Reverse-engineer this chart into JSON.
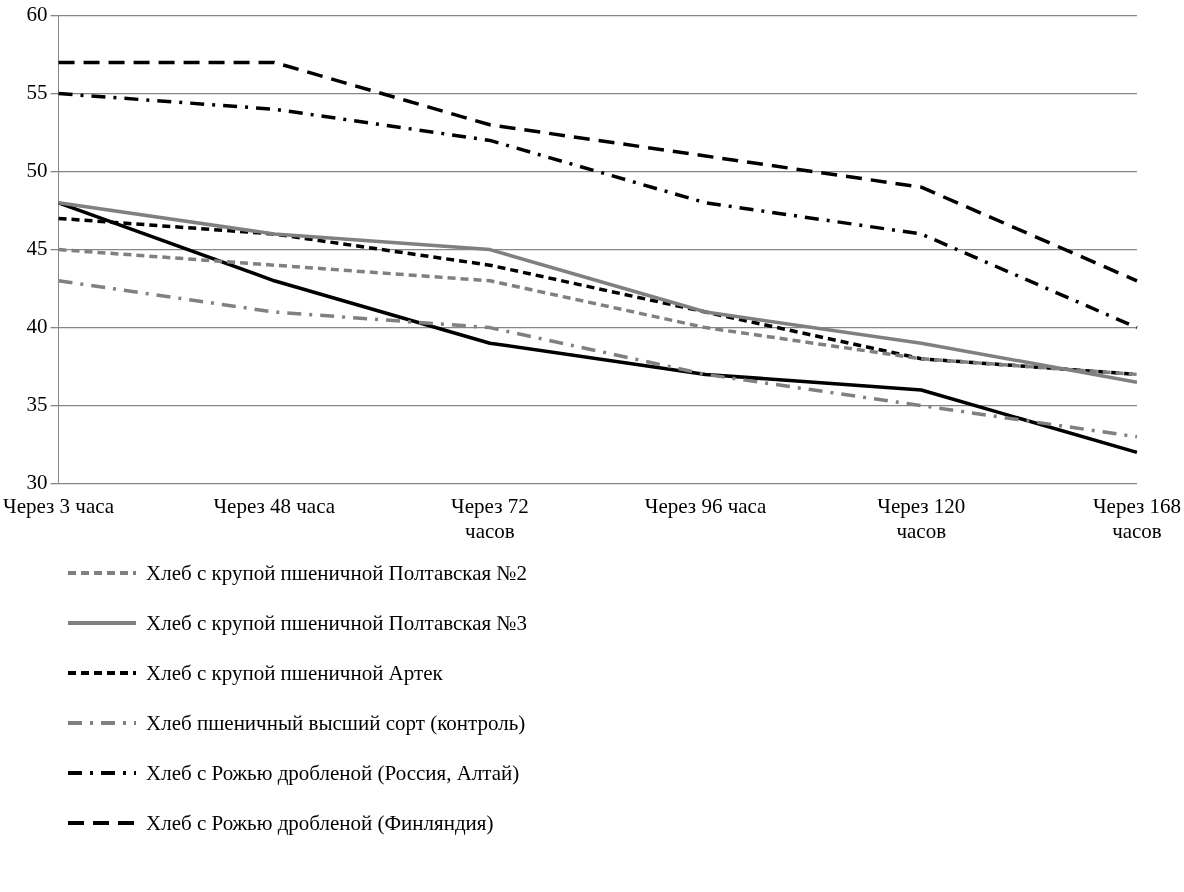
{
  "chart_data": {
    "type": "line",
    "categories": [
      "Через 3 часа",
      "Через 48 часа",
      "Через 72 часов",
      "Через 96 часа",
      "Через 120 часов",
      "Через 168 часов"
    ],
    "ylim": [
      30,
      60
    ],
    "yticks": [
      30,
      35,
      40,
      45,
      50,
      55,
      60
    ],
    "grid": "y",
    "legend": "bottom",
    "marker": "none",
    "series": [
      {
        "name": "Хлеб с крупой  пшеничной Полтавская №2",
        "color": "#808080",
        "line_style": "dashed",
        "values": [
          45,
          44,
          43,
          40,
          38,
          37
        ]
      },
      {
        "name": "Хлеб с крупой  пшеничной Полтавская №3",
        "color": "#808080",
        "line_style": "solid",
        "values": [
          48,
          46,
          45,
          41,
          39,
          36.5
        ]
      },
      {
        "name": "Хлеб с крупой  пшеничной Артек",
        "color": "#000000",
        "line_style": "dashed",
        "values": [
          47,
          46,
          44,
          41,
          38,
          37
        ]
      },
      {
        "name": "Хлеб пшеничный высший сорт (контроль)",
        "color": "#808080",
        "line_style": "dashdot",
        "values": [
          43,
          41,
          40,
          37,
          35,
          33
        ]
      },
      {
        "name": "Хлеб с Рожью  дробленой (Россия, Алтай)",
        "color": "#000000",
        "line_style": "dashdot",
        "values": [
          55,
          54,
          52,
          48,
          46,
          40
        ]
      },
      {
        "name": "Хлеб с Рожью дробленой (Финляндия)",
        "color": "#000000",
        "line_style": "longdash",
        "values": [
          57,
          57,
          53,
          51,
          49,
          43
        ]
      },
      {
        "color": "#000000",
        "line_style": "solid",
        "values": [
          48,
          43,
          39,
          37,
          36,
          32
        ]
      }
    ]
  }
}
